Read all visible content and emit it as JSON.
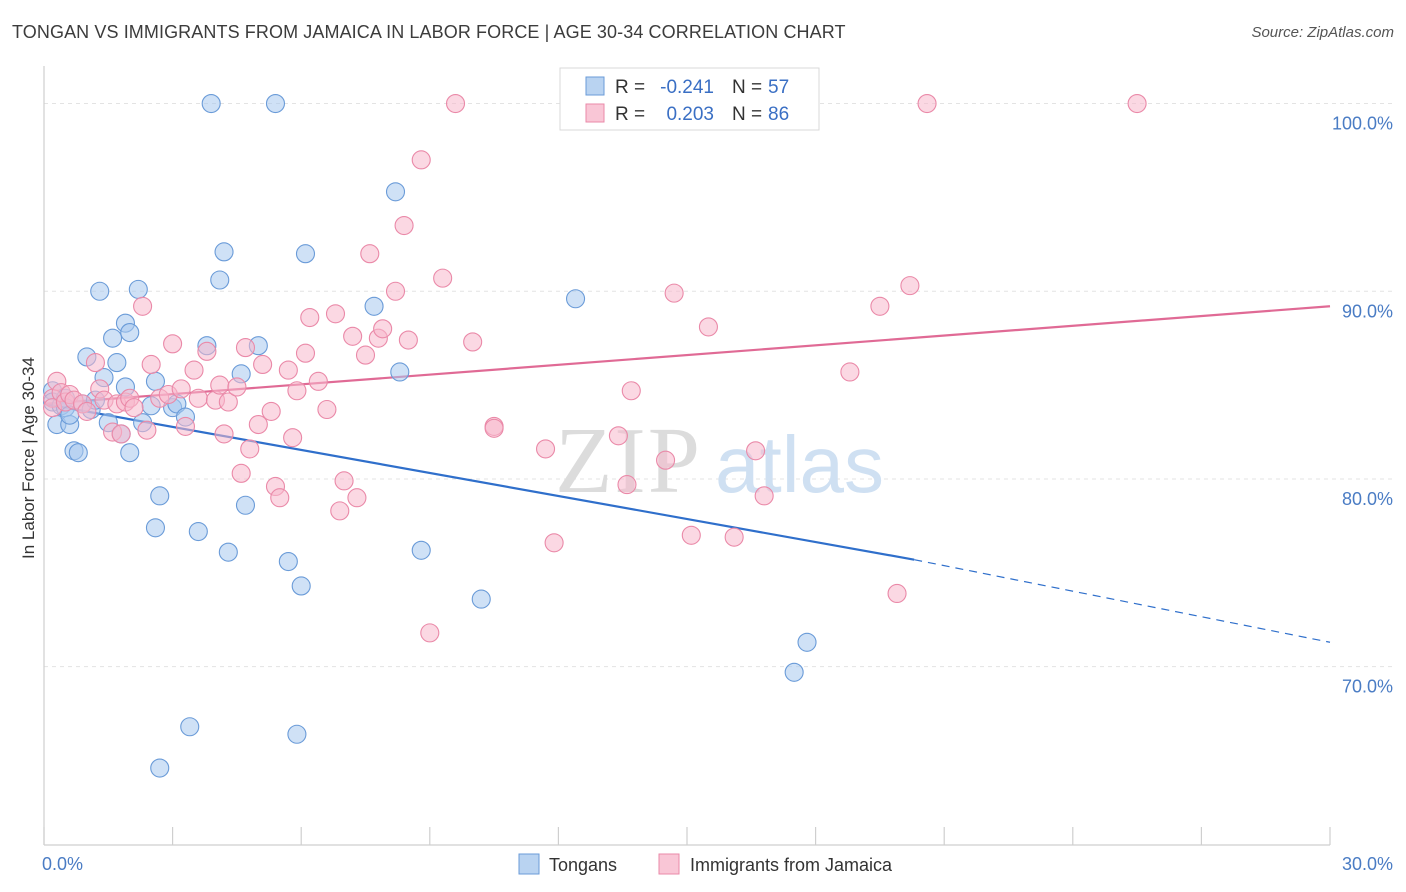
{
  "chart_data": {
    "type": "scatter",
    "title": "TONGAN VS IMMIGRANTS FROM JAMAICA IN LABOR FORCE | AGE 30-34 CORRELATION CHART",
    "source": "Source: ZipAtlas.com",
    "ylabel": "In Labor Force | Age 30-34",
    "xlabel": "",
    "xlim": [
      0,
      30
    ],
    "ylim": [
      60.5,
      102
    ],
    "x_tick_labels": [
      {
        "value": 0,
        "label": "0.0%"
      },
      {
        "value": 30,
        "label": "30.0%"
      }
    ],
    "y_tick_labels": [
      {
        "value": 100,
        "label": "100.0%"
      },
      {
        "value": 90,
        "label": "90.0%"
      },
      {
        "value": 80,
        "label": "80.0%"
      },
      {
        "value": 70,
        "label": "70.0%"
      }
    ],
    "watermark": {
      "zip": "ZIP",
      "atlas": "atlas"
    },
    "legend": {
      "rows": [
        {
          "r_label": "R =",
          "r_value": "-0.241",
          "n_label": "N =",
          "n_value": "57"
        },
        {
          "r_label": "R =",
          "r_value": "0.203",
          "n_label": "N =",
          "n_value": "86"
        }
      ]
    },
    "series": [
      {
        "name": "Tongans",
        "color": "#a8c8ee",
        "stroke": "#6a9bd8",
        "line_color": "#2f6fcb",
        "trend": {
          "x0": 0,
          "y0": 84.0,
          "x1": 20.3,
          "y1": 75.7,
          "dash_to_x": 30,
          "dash_to_y": 71.3
        },
        "points": [
          [
            0.2,
            84.7
          ],
          [
            0.2,
            84.1
          ],
          [
            0.3,
            82.9
          ],
          [
            0.4,
            83.9
          ],
          [
            0.5,
            84.3
          ],
          [
            0.5,
            83.8
          ],
          [
            0.6,
            82.9
          ],
          [
            0.6,
            83.4
          ],
          [
            0.7,
            81.5
          ],
          [
            0.8,
            81.4
          ],
          [
            0.9,
            84.0
          ],
          [
            1.0,
            86.5
          ],
          [
            1.1,
            83.7
          ],
          [
            1.2,
            84.2
          ],
          [
            1.3,
            90.0
          ],
          [
            1.4,
            85.4
          ],
          [
            1.5,
            83.0
          ],
          [
            1.6,
            87.5
          ],
          [
            1.7,
            86.2
          ],
          [
            1.8,
            82.4
          ],
          [
            1.9,
            84.9
          ],
          [
            1.9,
            88.3
          ],
          [
            2.0,
            87.8
          ],
          [
            2.0,
            81.4
          ],
          [
            2.2,
            90.1
          ],
          [
            2.3,
            83.0
          ],
          [
            2.5,
            83.9
          ],
          [
            2.6,
            85.2
          ],
          [
            2.6,
            77.4
          ],
          [
            2.7,
            79.1
          ],
          [
            2.7,
            64.6
          ],
          [
            3.0,
            83.8
          ],
          [
            3.1,
            84.0
          ],
          [
            3.3,
            83.3
          ],
          [
            3.4,
            66.8
          ],
          [
            3.6,
            77.2
          ],
          [
            3.8,
            87.1
          ],
          [
            3.9,
            100.0
          ],
          [
            4.1,
            90.6
          ],
          [
            4.2,
            92.1
          ],
          [
            4.3,
            76.1
          ],
          [
            4.6,
            85.6
          ],
          [
            4.7,
            78.6
          ],
          [
            5.0,
            87.1
          ],
          [
            5.4,
            100.0
          ],
          [
            5.7,
            75.6
          ],
          [
            5.9,
            66.4
          ],
          [
            6.0,
            74.3
          ],
          [
            6.1,
            92.0
          ],
          [
            7.7,
            89.2
          ],
          [
            8.2,
            95.3
          ],
          [
            8.3,
            85.7
          ],
          [
            8.8,
            76.2
          ],
          [
            10.2,
            73.6
          ],
          [
            12.4,
            89.6
          ],
          [
            17.5,
            69.7
          ],
          [
            17.8,
            71.3
          ]
        ]
      },
      {
        "name": "Immigrants from Jamaica",
        "color": "#f7b8cc",
        "stroke": "#ea89a8",
        "line_color": "#e06a95",
        "trend": {
          "x0": 0,
          "y0": 84.0,
          "x1": 30,
          "y1": 89.2
        },
        "points": [
          [
            0.2,
            84.3
          ],
          [
            0.2,
            83.8
          ],
          [
            0.3,
            85.2
          ],
          [
            0.4,
            84.6
          ],
          [
            0.5,
            84.1
          ],
          [
            0.6,
            84.5
          ],
          [
            0.7,
            84.2
          ],
          [
            0.9,
            84.0
          ],
          [
            1.0,
            83.6
          ],
          [
            1.2,
            86.2
          ],
          [
            1.3,
            84.8
          ],
          [
            1.4,
            84.2
          ],
          [
            1.6,
            82.5
          ],
          [
            1.7,
            84.0
          ],
          [
            1.8,
            82.4
          ],
          [
            1.9,
            84.1
          ],
          [
            2.0,
            84.3
          ],
          [
            2.1,
            83.8
          ],
          [
            2.3,
            89.2
          ],
          [
            2.4,
            82.6
          ],
          [
            2.5,
            86.1
          ],
          [
            2.7,
            84.3
          ],
          [
            2.9,
            84.5
          ],
          [
            3.0,
            87.2
          ],
          [
            3.2,
            84.8
          ],
          [
            3.3,
            82.8
          ],
          [
            3.5,
            85.8
          ],
          [
            3.6,
            84.3
          ],
          [
            3.8,
            86.8
          ],
          [
            4.0,
            84.2
          ],
          [
            4.1,
            85.0
          ],
          [
            4.2,
            82.4
          ],
          [
            4.3,
            84.1
          ],
          [
            4.5,
            84.9
          ],
          [
            4.6,
            80.3
          ],
          [
            4.7,
            87.0
          ],
          [
            4.8,
            81.6
          ],
          [
            5.0,
            82.9
          ],
          [
            5.1,
            86.1
          ],
          [
            5.3,
            83.6
          ],
          [
            5.4,
            79.6
          ],
          [
            5.5,
            79.0
          ],
          [
            5.7,
            85.8
          ],
          [
            5.8,
            82.2
          ],
          [
            5.9,
            84.7
          ],
          [
            6.1,
            86.7
          ],
          [
            6.2,
            88.6
          ],
          [
            6.4,
            85.2
          ],
          [
            6.6,
            83.7
          ],
          [
            6.8,
            88.8
          ],
          [
            6.9,
            78.3
          ],
          [
            7.0,
            79.9
          ],
          [
            7.2,
            87.6
          ],
          [
            7.3,
            79.0
          ],
          [
            7.5,
            86.6
          ],
          [
            7.6,
            92.0
          ],
          [
            7.8,
            87.5
          ],
          [
            7.9,
            88.0
          ],
          [
            8.2,
            90.0
          ],
          [
            8.4,
            93.5
          ],
          [
            8.5,
            87.4
          ],
          [
            8.8,
            97.0
          ],
          [
            9.0,
            71.8
          ],
          [
            9.3,
            90.7
          ],
          [
            9.6,
            100.0
          ],
          [
            10.0,
            87.3
          ],
          [
            10.5,
            82.8
          ],
          [
            10.5,
            82.7
          ],
          [
            11.7,
            81.6
          ],
          [
            11.9,
            76.6
          ],
          [
            13.4,
            82.3
          ],
          [
            13.6,
            79.7
          ],
          [
            13.7,
            84.7
          ],
          [
            14.5,
            81.0
          ],
          [
            14.7,
            89.9
          ],
          [
            15.1,
            77.0
          ],
          [
            15.5,
            88.1
          ],
          [
            16.1,
            76.9
          ],
          [
            16.6,
            81.5
          ],
          [
            16.8,
            79.1
          ],
          [
            18.8,
            85.7
          ],
          [
            19.5,
            89.2
          ],
          [
            19.9,
            73.9
          ],
          [
            20.2,
            90.3
          ],
          [
            20.6,
            100.0
          ],
          [
            25.5,
            100.0
          ]
        ]
      }
    ]
  }
}
